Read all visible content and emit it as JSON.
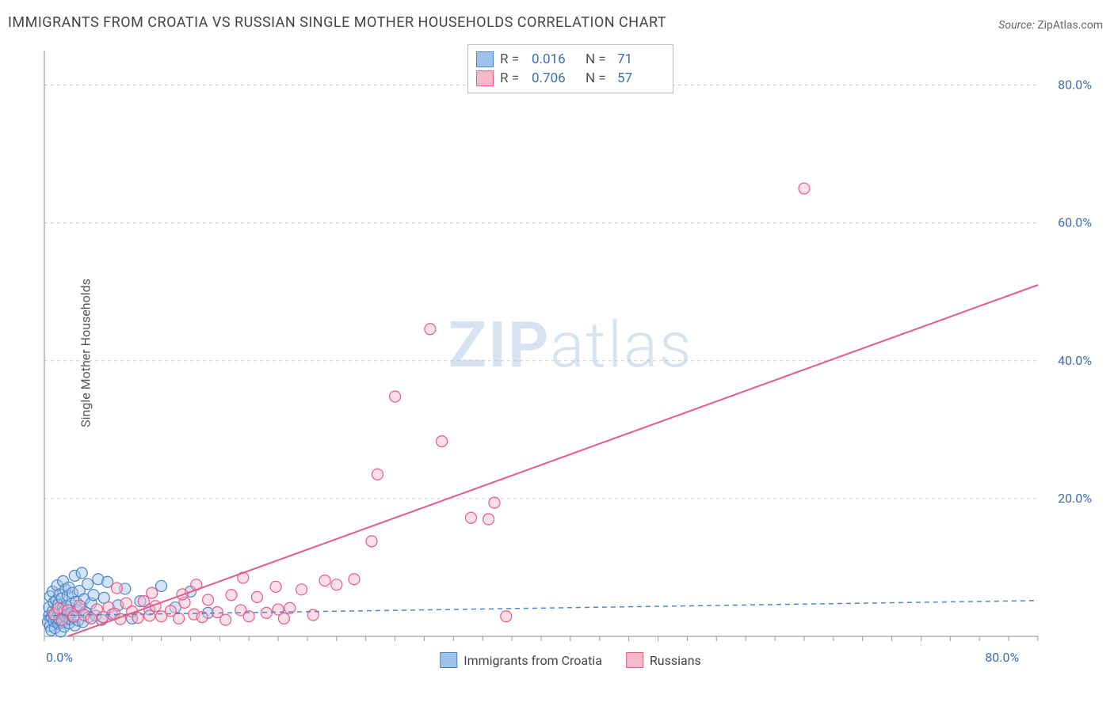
{
  "title": "IMMIGRANTS FROM CROATIA VS RUSSIAN SINGLE MOTHER HOUSEHOLDS CORRELATION CHART",
  "source_label": "Source:",
  "source_value": "ZipAtlas.com",
  "y_axis_label": "Single Mother Households",
  "watermark_a": "ZIP",
  "watermark_b": "atlas",
  "chart": {
    "type": "scatter-with-regression",
    "xlim": [
      0,
      85
    ],
    "ylim": [
      0,
      85
    ],
    "x_ticks_major_percent": [
      0,
      80
    ],
    "y_ticks_major_percent": [
      0,
      20,
      40,
      60,
      80
    ],
    "x_tick_labels": {
      "0": "0.0%",
      "80": "80.0%"
    },
    "y_tick_labels": {
      "0": "0.0%",
      "20": "20.0%",
      "40": "40.0%",
      "60": "60.0%",
      "80": "80.0%"
    },
    "x_minor_tick_step": 2.5,
    "grid_color": "#cccccc",
    "axis_color": "#888888",
    "background": "#ffffff",
    "tick_label_color": "#3b6db5",
    "marker_radius": 7,
    "marker_stroke_width": 1.2,
    "series": [
      {
        "name": "Immigrants from Croatia",
        "color_fill": "#9ec3ea",
        "color_fill_opacity": 0.45,
        "color_stroke": "#4f86c6",
        "regression": {
          "type": "dashed",
          "x1": 0,
          "y1": 3.0,
          "x2": 85,
          "y2": 5.2,
          "color": "#4f86c6",
          "width": 1.5,
          "dash": "6 5"
        },
        "legend_top": {
          "R_label": "R =",
          "R": "0.016",
          "N_label": "N =",
          "N": "71"
        },
        "points": [
          [
            0.3,
            2.1
          ],
          [
            0.4,
            3.0
          ],
          [
            0.4,
            4.2
          ],
          [
            0.5,
            1.5
          ],
          [
            0.5,
            5.8
          ],
          [
            0.6,
            2.8
          ],
          [
            0.6,
            0.9
          ],
          [
            0.7,
            3.6
          ],
          [
            0.7,
            6.5
          ],
          [
            0.8,
            2.2
          ],
          [
            0.8,
            4.9
          ],
          [
            0.9,
            1.2
          ],
          [
            0.9,
            3.1
          ],
          [
            1.0,
            5.2
          ],
          [
            1.0,
            2.6
          ],
          [
            1.1,
            7.4
          ],
          [
            1.1,
            3.9
          ],
          [
            1.2,
            1.8
          ],
          [
            1.2,
            4.6
          ],
          [
            1.3,
            2.4
          ],
          [
            1.3,
            6.1
          ],
          [
            1.4,
            3.3
          ],
          [
            1.4,
            0.7
          ],
          [
            1.5,
            5.5
          ],
          [
            1.5,
            2.0
          ],
          [
            1.6,
            4.1
          ],
          [
            1.6,
            8.0
          ],
          [
            1.7,
            3.7
          ],
          [
            1.7,
            1.4
          ],
          [
            1.8,
            6.8
          ],
          [
            1.8,
            2.9
          ],
          [
            1.9,
            4.4
          ],
          [
            2.0,
            3.2
          ],
          [
            2.0,
            5.9
          ],
          [
            2.1,
            1.9
          ],
          [
            2.1,
            7.1
          ],
          [
            2.2,
            2.5
          ],
          [
            2.3,
            4.7
          ],
          [
            2.3,
            3.4
          ],
          [
            2.4,
            6.3
          ],
          [
            2.5,
            2.7
          ],
          [
            2.6,
            8.8
          ],
          [
            2.6,
            1.6
          ],
          [
            2.7,
            5.0
          ],
          [
            2.8,
            3.8
          ],
          [
            2.9,
            2.3
          ],
          [
            3.0,
            6.6
          ],
          [
            3.1,
            4.3
          ],
          [
            3.2,
            9.2
          ],
          [
            3.3,
            2.1
          ],
          [
            3.4,
            5.4
          ],
          [
            3.5,
            3.5
          ],
          [
            3.7,
            7.6
          ],
          [
            3.8,
            2.8
          ],
          [
            4.0,
            4.8
          ],
          [
            4.2,
            6.0
          ],
          [
            4.4,
            3.0
          ],
          [
            4.6,
            8.3
          ],
          [
            4.9,
            2.4
          ],
          [
            5.1,
            5.6
          ],
          [
            5.4,
            7.9
          ],
          [
            5.8,
            3.2
          ],
          [
            6.3,
            4.5
          ],
          [
            6.9,
            6.9
          ],
          [
            7.5,
            2.6
          ],
          [
            8.2,
            5.1
          ],
          [
            9.0,
            3.9
          ],
          [
            10.0,
            7.3
          ],
          [
            11.2,
            4.2
          ],
          [
            12.5,
            6.5
          ],
          [
            14.0,
            3.4
          ]
        ]
      },
      {
        "name": "Russians",
        "color_fill": "#f7b8ca",
        "color_fill_opacity": 0.45,
        "color_stroke": "#e85a8a",
        "regression": {
          "type": "solid",
          "x1": 2.0,
          "y1": 0.0,
          "x2": 85,
          "y2": 51.0,
          "color": "#e85a8a",
          "width": 2,
          "dash": ""
        },
        "legend_top": {
          "R_label": "R =",
          "R": "0.706",
          "N_label": "N =",
          "N": "57"
        },
        "points": [
          [
            0.8,
            3.2
          ],
          [
            1.2,
            4.1
          ],
          [
            1.5,
            2.4
          ],
          [
            2.0,
            3.8
          ],
          [
            2.5,
            2.9
          ],
          [
            3.0,
            4.5
          ],
          [
            3.4,
            3.1
          ],
          [
            4.0,
            2.6
          ],
          [
            4.5,
            3.9
          ],
          [
            5.0,
            2.8
          ],
          [
            5.5,
            4.2
          ],
          [
            6.0,
            3.3
          ],
          [
            6.5,
            2.5
          ],
          [
            7.0,
            4.8
          ],
          [
            7.5,
            3.6
          ],
          [
            8.0,
            2.7
          ],
          [
            8.5,
            5.1
          ],
          [
            9.0,
            3.0
          ],
          [
            9.5,
            4.4
          ],
          [
            10.0,
            2.9
          ],
          [
            10.8,
            3.7
          ],
          [
            11.5,
            2.6
          ],
          [
            12.0,
            4.9
          ],
          [
            12.8,
            3.2
          ],
          [
            13.5,
            2.8
          ],
          [
            14.0,
            5.3
          ],
          [
            14.8,
            3.5
          ],
          [
            15.5,
            2.4
          ],
          [
            16.0,
            6.0
          ],
          [
            16.8,
            3.8
          ],
          [
            17.5,
            2.9
          ],
          [
            18.2,
            5.7
          ],
          [
            19.0,
            3.4
          ],
          [
            19.8,
            7.2
          ],
          [
            20.5,
            2.6
          ],
          [
            21.0,
            4.1
          ],
          [
            22.0,
            6.8
          ],
          [
            23.0,
            3.1
          ],
          [
            24.0,
            8.1
          ],
          [
            25.0,
            7.5
          ],
          [
            26.5,
            8.3
          ],
          [
            28.0,
            13.8
          ],
          [
            28.5,
            23.5
          ],
          [
            30.0,
            34.8
          ],
          [
            33.0,
            44.6
          ],
          [
            34.0,
            28.3
          ],
          [
            36.5,
            17.2
          ],
          [
            38.0,
            17.0
          ],
          [
            38.5,
            19.4
          ],
          [
            39.5,
            2.9
          ],
          [
            65.0,
            65.0
          ],
          [
            6.2,
            7.0
          ],
          [
            9.2,
            6.3
          ],
          [
            11.8,
            6.1
          ],
          [
            13.0,
            7.5
          ],
          [
            17.0,
            8.5
          ],
          [
            20.0,
            3.9
          ]
        ]
      }
    ]
  },
  "legend_bottom": [
    {
      "label": "Immigrants from Croatia",
      "fill": "#9ec3ea",
      "stroke": "#4f86c6"
    },
    {
      "label": "Russians",
      "fill": "#f7b8ca",
      "stroke": "#e85a8a"
    }
  ]
}
